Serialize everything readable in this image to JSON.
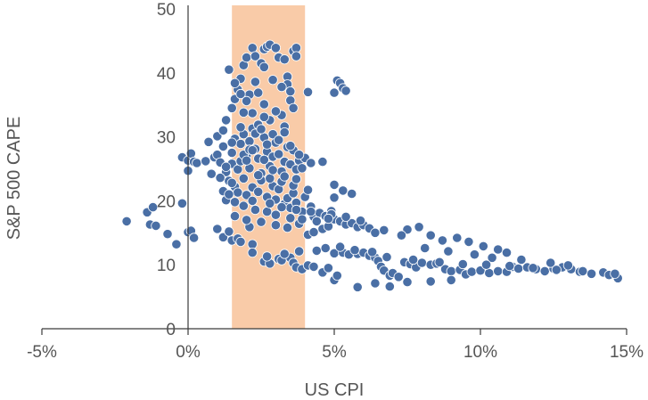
{
  "chart_data": {
    "type": "scatter",
    "title": "",
    "xlabel": "US CPI",
    "ylabel": "S&P 500 CAPE",
    "xlim": [
      -5,
      15
    ],
    "ylim": [
      0,
      50
    ],
    "x_ticks": [
      -5,
      0,
      5,
      10,
      15
    ],
    "x_tick_labels": [
      "-5%",
      "0%",
      "5%",
      "10%",
      "15%"
    ],
    "y_ticks": [
      0,
      10,
      20,
      30,
      40,
      50
    ],
    "y_tick_labels": [
      "0",
      "10",
      "20",
      "30",
      "40",
      "50"
    ],
    "grid": false,
    "highlight_band": {
      "x_range": [
        1.5,
        4.0
      ],
      "color": "#f9cba8"
    },
    "point_color": "#4a6fa5",
    "series": [
      {
        "points": [
          [
            -2.1,
            16.8
          ],
          [
            -1.4,
            18.2
          ],
          [
            -1.3,
            16.3
          ],
          [
            -1.2,
            19.0
          ],
          [
            -1.1,
            16.1
          ],
          [
            -0.7,
            14.8
          ],
          [
            -0.4,
            13.2
          ],
          [
            -0.2,
            19.6
          ],
          [
            0.0,
            15.1
          ],
          [
            0.1,
            15.3
          ],
          [
            0.2,
            14.2
          ],
          [
            -0.2,
            26.8
          ],
          [
            0.0,
            26.3
          ],
          [
            0.1,
            27.4
          ],
          [
            0.2,
            26.1
          ],
          [
            0.0,
            24.7
          ],
          [
            0.3,
            25.9
          ],
          [
            0.6,
            26.2
          ],
          [
            0.9,
            26.8
          ],
          [
            1.0,
            27.2
          ],
          [
            1.1,
            26.0
          ],
          [
            0.7,
            29.2
          ],
          [
            1.0,
            30.1
          ],
          [
            1.2,
            31.0
          ],
          [
            1.3,
            32.6
          ],
          [
            1.2,
            28.5
          ],
          [
            1.3,
            24.5
          ],
          [
            1.4,
            23.1
          ],
          [
            1.5,
            25.8
          ],
          [
            1.5,
            27.5
          ],
          [
            1.6,
            29.7
          ],
          [
            1.6,
            22.2
          ],
          [
            1.7,
            24.9
          ],
          [
            1.8,
            26.2
          ],
          [
            1.8,
            28.9
          ],
          [
            1.9,
            30.4
          ],
          [
            2.0,
            27.0
          ],
          [
            2.1,
            25.1
          ],
          [
            2.1,
            29.3
          ],
          [
            2.2,
            31.3
          ],
          [
            2.3,
            28.1
          ],
          [
            2.4,
            26.6
          ],
          [
            2.5,
            24.3
          ],
          [
            2.6,
            29.9
          ],
          [
            2.7,
            27.7
          ],
          [
            2.8,
            25.4
          ],
          [
            2.9,
            26.9
          ],
          [
            3.0,
            29.1
          ],
          [
            3.1,
            27.3
          ],
          [
            3.2,
            24.6
          ],
          [
            3.3,
            26.1
          ],
          [
            3.4,
            28.4
          ],
          [
            3.5,
            25.7
          ],
          [
            3.6,
            27.9
          ],
          [
            3.7,
            24.9
          ],
          [
            3.8,
            26.3
          ],
          [
            3.9,
            25.1
          ],
          [
            4.0,
            26.7
          ],
          [
            4.2,
            25.9
          ],
          [
            4.6,
            26.1
          ],
          [
            1.2,
            21.5
          ],
          [
            1.3,
            20.1
          ],
          [
            1.5,
            22.8
          ],
          [
            1.7,
            21.3
          ],
          [
            1.9,
            23.5
          ],
          [
            2.0,
            20.9
          ],
          [
            2.2,
            22.1
          ],
          [
            2.4,
            21.4
          ],
          [
            2.5,
            23.2
          ],
          [
            2.7,
            20.6
          ],
          [
            2.9,
            22.3
          ],
          [
            3.0,
            20.2
          ],
          [
            3.1,
            21.8
          ],
          [
            3.3,
            19.5
          ],
          [
            3.4,
            20.4
          ],
          [
            3.5,
            18.9
          ],
          [
            3.6,
            21.2
          ],
          [
            3.7,
            19.7
          ],
          [
            3.9,
            18.3
          ],
          [
            4.0,
            20.6
          ],
          [
            4.2,
            19.1
          ],
          [
            4.3,
            17.5
          ],
          [
            4.5,
            18.1
          ],
          [
            4.7,
            17.6
          ],
          [
            4.9,
            18.4
          ],
          [
            5.0,
            17.1
          ],
          [
            5.2,
            16.8
          ],
          [
            5.4,
            16.3
          ],
          [
            5.6,
            16.5
          ],
          [
            5.8,
            15.9
          ],
          [
            6.0,
            16.2
          ],
          [
            6.2,
            15.7
          ],
          [
            6.4,
            15.0
          ],
          [
            4.1,
            14.7
          ],
          [
            4.3,
            15.1
          ],
          [
            4.6,
            15.6
          ],
          [
            4.8,
            16.0
          ],
          [
            5.0,
            20.5
          ],
          [
            5.0,
            22.5
          ],
          [
            5.3,
            21.6
          ],
          [
            5.6,
            21.1
          ],
          [
            1.0,
            15.6
          ],
          [
            1.2,
            14.3
          ],
          [
            1.4,
            15.2
          ],
          [
            1.5,
            13.8
          ],
          [
            1.7,
            14.1
          ],
          [
            1.8,
            13.6
          ],
          [
            2.1,
            15.9
          ],
          [
            2.2,
            13.2
          ],
          [
            1.8,
            39.1
          ],
          [
            1.7,
            37.4
          ],
          [
            1.6,
            35.9
          ],
          [
            1.5,
            34.5
          ],
          [
            1.9,
            41.2
          ],
          [
            2.0,
            42.4
          ],
          [
            2.2,
            43.9
          ],
          [
            2.3,
            42.6
          ],
          [
            2.5,
            41.5
          ],
          [
            2.6,
            43.7
          ],
          [
            2.7,
            44.1
          ],
          [
            2.8,
            44.4
          ],
          [
            3.0,
            43.9
          ],
          [
            3.1,
            42.4
          ],
          [
            3.3,
            42.1
          ],
          [
            3.6,
            43.4
          ],
          [
            3.7,
            43.9
          ],
          [
            3.7,
            42.6
          ],
          [
            2.6,
            40.9
          ],
          [
            2.9,
            38.9
          ],
          [
            3.4,
            39.4
          ],
          [
            3.4,
            38.2
          ],
          [
            3.5,
            35.7
          ],
          [
            3.6,
            34.5
          ],
          [
            4.1,
            37.0
          ],
          [
            2.3,
            38.6
          ],
          [
            2.1,
            36.6
          ],
          [
            5.0,
            36.9
          ],
          [
            5.1,
            38.8
          ],
          [
            5.2,
            38.4
          ],
          [
            5.3,
            37.6
          ],
          [
            5.4,
            37.2
          ],
          [
            2.6,
            35.1
          ],
          [
            2.2,
            33.7
          ],
          [
            2.8,
            32.6
          ],
          [
            3.2,
            33.4
          ],
          [
            3.3,
            31.6
          ],
          [
            2.4,
            31.9
          ],
          [
            2.6,
            10.5
          ],
          [
            2.8,
            10.2
          ],
          [
            3.1,
            10.9
          ],
          [
            3.2,
            10.7
          ],
          [
            3.5,
            11.1
          ],
          [
            3.6,
            10.3
          ],
          [
            3.7,
            9.6
          ],
          [
            3.9,
            9.3
          ],
          [
            4.1,
            9.9
          ],
          [
            4.3,
            9.7
          ],
          [
            4.6,
            8.8
          ],
          [
            4.8,
            9.5
          ],
          [
            5.0,
            11.8
          ],
          [
            5.3,
            11.9
          ],
          [
            5.5,
            11.6
          ],
          [
            5.8,
            11.7
          ],
          [
            6.0,
            11.9
          ],
          [
            6.2,
            11.4
          ],
          [
            6.4,
            11.1
          ],
          [
            6.5,
            10.6
          ],
          [
            6.6,
            9.7
          ],
          [
            6.7,
            9.1
          ],
          [
            6.9,
            8.3
          ],
          [
            7.0,
            8.7
          ],
          [
            7.2,
            8.1
          ],
          [
            7.4,
            10.4
          ],
          [
            7.6,
            10.1
          ],
          [
            7.8,
            9.6
          ],
          [
            8.0,
            10.3
          ],
          [
            8.3,
            10.0
          ],
          [
            8.5,
            10.2
          ],
          [
            8.8,
            9.3
          ],
          [
            9.0,
            9.0
          ],
          [
            9.3,
            9.2
          ],
          [
            9.5,
            8.5
          ],
          [
            9.7,
            8.9
          ],
          [
            10.0,
            9.1
          ],
          [
            10.3,
            8.7
          ],
          [
            10.6,
            9.0
          ],
          [
            10.9,
            8.9
          ],
          [
            11.1,
            9.7
          ],
          [
            11.3,
            9.4
          ],
          [
            11.6,
            9.6
          ],
          [
            11.9,
            9.3
          ],
          [
            12.2,
            9.0
          ],
          [
            12.5,
            9.4
          ],
          [
            12.8,
            9.6
          ],
          [
            13.1,
            9.3
          ],
          [
            13.4,
            8.9
          ],
          [
            13.8,
            8.6
          ],
          [
            14.2,
            8.8
          ],
          [
            14.4,
            8.4
          ],
          [
            14.7,
            7.9
          ],
          [
            7.5,
            15.5
          ],
          [
            7.9,
            15.9
          ],
          [
            8.3,
            14.6
          ],
          [
            8.7,
            13.8
          ],
          [
            9.2,
            14.2
          ],
          [
            9.6,
            13.6
          ],
          [
            10.1,
            12.9
          ],
          [
            10.6,
            12.4
          ],
          [
            10.9,
            11.9
          ],
          [
            5.8,
            6.5
          ],
          [
            6.4,
            7.1
          ],
          [
            6.9,
            6.6
          ],
          [
            7.5,
            7.3
          ],
          [
            8.3,
            7.4
          ],
          [
            9.0,
            7.6
          ],
          [
            5.0,
            7.6
          ],
          [
            5.1,
            8.3
          ],
          [
            1.4,
            40.5
          ],
          [
            1.6,
            38.4
          ],
          [
            1.8,
            36.7
          ],
          [
            2.0,
            35.6
          ],
          [
            2.4,
            36.9
          ],
          [
            3.2,
            37.8
          ],
          [
            3.5,
            37.1
          ],
          [
            1.4,
            21.0
          ],
          [
            1.6,
            17.6
          ],
          [
            2.0,
            17.0
          ],
          [
            2.5,
            16.7
          ],
          [
            3.0,
            16.2
          ],
          [
            3.4,
            15.8
          ],
          [
            3.8,
            16.4
          ],
          [
            1.9,
            27.2
          ],
          [
            2.1,
            28.0
          ],
          [
            2.3,
            30.5
          ],
          [
            2.5,
            31.2
          ],
          [
            2.7,
            28.8
          ],
          [
            2.9,
            30.4
          ],
          [
            3.1,
            29.5
          ],
          [
            3.3,
            30.7
          ],
          [
            3.5,
            28.6
          ],
          [
            3.8,
            27.2
          ],
          [
            4.4,
            16.8
          ],
          [
            4.9,
            17.9
          ],
          [
            5.4,
            17.5
          ],
          [
            5.9,
            16.9
          ],
          [
            6.7,
            15.4
          ],
          [
            7.3,
            14.6
          ],
          [
            8.1,
            12.6
          ],
          [
            8.9,
            12.1
          ],
          [
            9.8,
            11.6
          ],
          [
            10.4,
            11.1
          ],
          [
            11.4,
            10.8
          ],
          [
            12.4,
            10.3
          ],
          [
            13.0,
            9.9
          ],
          [
            2.4,
            24.0
          ],
          [
            2.8,
            23.5
          ],
          [
            3.2,
            23.0
          ],
          [
            3.6,
            22.4
          ],
          [
            4.1,
            21.7
          ],
          [
            2.3,
            18.6
          ],
          [
            2.7,
            18.3
          ],
          [
            3.0,
            17.8
          ],
          [
            3.5,
            17.3
          ],
          [
            3.9,
            17.1
          ],
          [
            4.4,
            12.2
          ],
          [
            4.7,
            12.6
          ],
          [
            5.2,
            12.8
          ],
          [
            5.7,
            12.3
          ],
          [
            6.3,
            12.0
          ],
          [
            6.8,
            11.2
          ],
          [
            7.7,
            10.8
          ],
          [
            8.6,
            10.4
          ],
          [
            9.4,
            10.1
          ],
          [
            10.2,
            10.0
          ],
          [
            11.0,
            9.8
          ],
          [
            11.8,
            9.5
          ],
          [
            12.6,
            9.2
          ],
          [
            13.5,
            9.0
          ],
          [
            14.6,
            8.6
          ],
          [
            2.2,
            11.9
          ],
          [
            2.7,
            11.3
          ],
          [
            3.3,
            11.7
          ],
          [
            3.8,
            12.1
          ],
          [
            1.5,
            29.1
          ],
          [
            1.8,
            31.5
          ],
          [
            2.6,
            33.1
          ],
          [
            3.0,
            34.0
          ],
          [
            1.9,
            33.8
          ],
          [
            2.0,
            26.3
          ],
          [
            2.2,
            27.9
          ],
          [
            2.6,
            26.4
          ],
          [
            2.9,
            24.8
          ],
          [
            3.3,
            23.8
          ],
          [
            3.7,
            23.4
          ],
          [
            1.1,
            23.6
          ],
          [
            1.3,
            25.3
          ],
          [
            0.8,
            24.2
          ],
          [
            1.6,
            19.8
          ],
          [
            1.9,
            19.2
          ],
          [
            2.2,
            20.0
          ],
          [
            2.8,
            19.6
          ],
          [
            3.2,
            19.0
          ],
          [
            3.7,
            18.6
          ],
          [
            4.2,
            18.3
          ],
          [
            4.8,
            17.2
          ]
        ]
      }
    ]
  }
}
